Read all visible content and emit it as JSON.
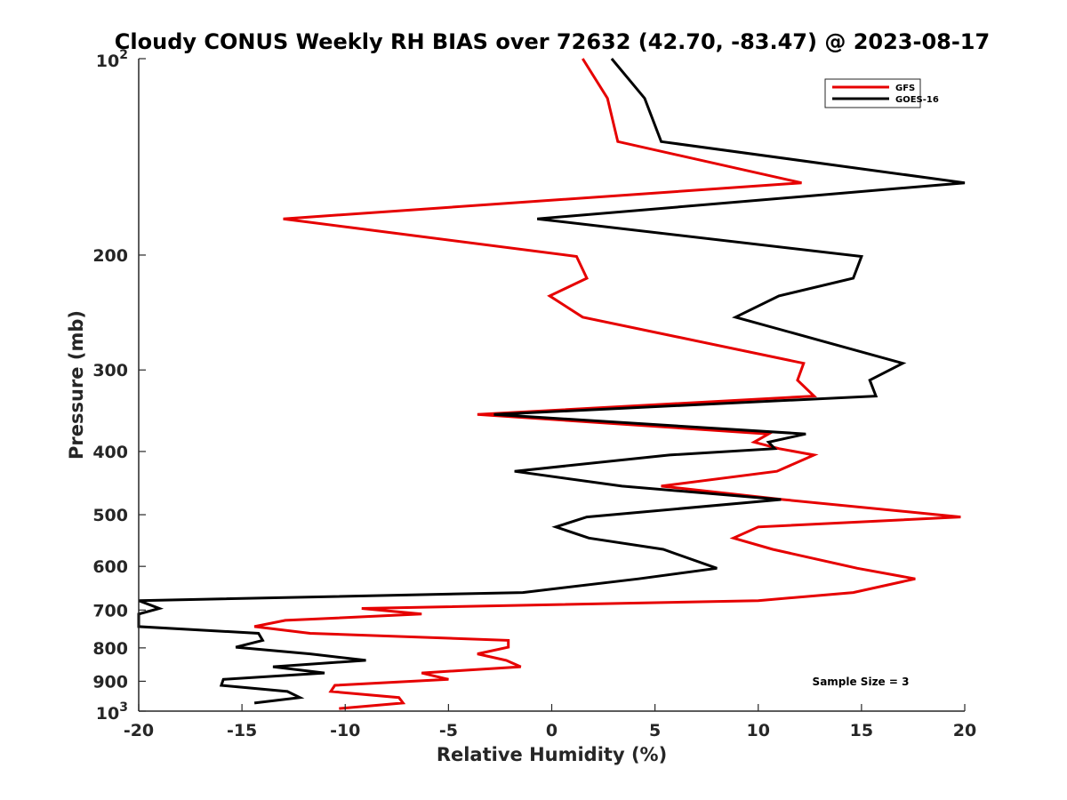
{
  "chart_data": {
    "type": "line",
    "title": "Cloudy CONUS Weekly RH BIAS over 72632 (42.70, -83.47) @ 2023-08-17",
    "xlabel": "Relative Humidity (%)",
    "ylabel": "Pressure (mb)",
    "xlim": [
      -20,
      20
    ],
    "ylim": [
      100,
      1000
    ],
    "y_scale": "log",
    "y_reversed": true,
    "x_ticks": [
      "-20",
      "-15",
      "-10",
      "-5",
      "0",
      "5",
      "10",
      "15",
      "20"
    ],
    "y_ticks": [
      {
        "base": "10",
        "exp": "2",
        "text": ""
      },
      {
        "base": "",
        "exp": "",
        "text": "200"
      },
      {
        "base": "",
        "exp": "",
        "text": "300"
      },
      {
        "base": "",
        "exp": "",
        "text": "400"
      },
      {
        "base": "",
        "exp": "",
        "text": "500"
      },
      {
        "base": "",
        "exp": "",
        "text": "600"
      },
      {
        "base": "",
        "exp": "",
        "text": "700"
      },
      {
        "base": "",
        "exp": "",
        "text": "800"
      },
      {
        "base": "",
        "exp": "",
        "text": "900"
      },
      {
        "base": "10",
        "exp": "3",
        "text": ""
      }
    ],
    "x_tick_values": [
      -20,
      -15,
      -10,
      -5,
      0,
      5,
      10,
      15,
      20
    ],
    "y_tick_values": [
      100,
      200,
      300,
      400,
      500,
      600,
      700,
      800,
      900,
      1000
    ],
    "grid": false,
    "legend_position": "top-right",
    "series": [
      {
        "name": "GFS",
        "color": "#e60000",
        "points": [
          [
            1.5,
            100
          ],
          [
            2.7,
            115
          ],
          [
            3.2,
            134
          ],
          [
            12.1,
            155
          ],
          [
            -13.0,
            176
          ],
          [
            1.2,
            201
          ],
          [
            1.7,
            217
          ],
          [
            -0.1,
            231
          ],
          [
            1.5,
            249
          ],
          [
            12.2,
            293
          ],
          [
            11.9,
            311
          ],
          [
            12.7,
            329
          ],
          [
            -3.6,
            351
          ],
          [
            10.5,
            376
          ],
          [
            9.8,
            387
          ],
          [
            11.0,
            396
          ],
          [
            12.7,
            405
          ],
          [
            10.9,
            429
          ],
          [
            5.3,
            452
          ],
          [
            11.2,
            474
          ],
          [
            19.8,
            504
          ],
          [
            10.0,
            522
          ],
          [
            8.8,
            543
          ],
          [
            10.7,
            565
          ],
          [
            14.8,
            604
          ],
          [
            17.6,
            627
          ],
          [
            14.6,
            658
          ],
          [
            10.0,
            677
          ],
          [
            -9.2,
            696
          ],
          [
            -6.3,
            710
          ],
          [
            -12.9,
            726
          ],
          [
            -14.4,
            742
          ],
          [
            -11.7,
            760
          ],
          [
            -2.1,
            779
          ],
          [
            -2.1,
            798
          ],
          [
            -3.6,
            817
          ],
          [
            -2.2,
            836
          ],
          [
            -1.5,
            855
          ],
          [
            -6.3,
            874
          ],
          [
            -5.0,
            894
          ],
          [
            -10.5,
            913
          ],
          [
            -10.7,
            933
          ],
          [
            -7.4,
            953
          ],
          [
            -7.2,
            972
          ],
          [
            -10.3,
            991
          ]
        ]
      },
      {
        "name": "GOES-16",
        "color": "#000000",
        "points": [
          [
            2.9,
            100
          ],
          [
            4.5,
            115
          ],
          [
            5.3,
            134
          ],
          [
            20.0,
            155
          ],
          [
            -0.7,
            176
          ],
          [
            15.0,
            201
          ],
          [
            14.6,
            217
          ],
          [
            11.0,
            231
          ],
          [
            8.9,
            249
          ],
          [
            17.0,
            293
          ],
          [
            15.4,
            311
          ],
          [
            15.7,
            329
          ],
          [
            -2.8,
            351
          ],
          [
            12.3,
            376
          ],
          [
            10.5,
            387
          ],
          [
            10.8,
            396
          ],
          [
            5.7,
            405
          ],
          [
            -1.8,
            429
          ],
          [
            3.4,
            452
          ],
          [
            11.1,
            474
          ],
          [
            1.7,
            504
          ],
          [
            0.2,
            522
          ],
          [
            1.8,
            543
          ],
          [
            5.4,
            565
          ],
          [
            8.0,
            604
          ],
          [
            4.2,
            627
          ],
          [
            -1.4,
            658
          ],
          [
            -20.0,
            677
          ],
          [
            -19.0,
            696
          ],
          [
            -20.0,
            710
          ],
          [
            -20.0,
            742
          ],
          [
            -14.2,
            760
          ],
          [
            -14.0,
            779
          ],
          [
            -15.3,
            798
          ],
          [
            -11.7,
            817
          ],
          [
            -9.0,
            836
          ],
          [
            -13.5,
            855
          ],
          [
            -11.0,
            874
          ],
          [
            -15.9,
            894
          ],
          [
            -16.0,
            913
          ],
          [
            -12.8,
            933
          ],
          [
            -12.2,
            953
          ],
          [
            -14.4,
            972
          ]
        ]
      }
    ],
    "annotation": "Sample Size = 3"
  }
}
